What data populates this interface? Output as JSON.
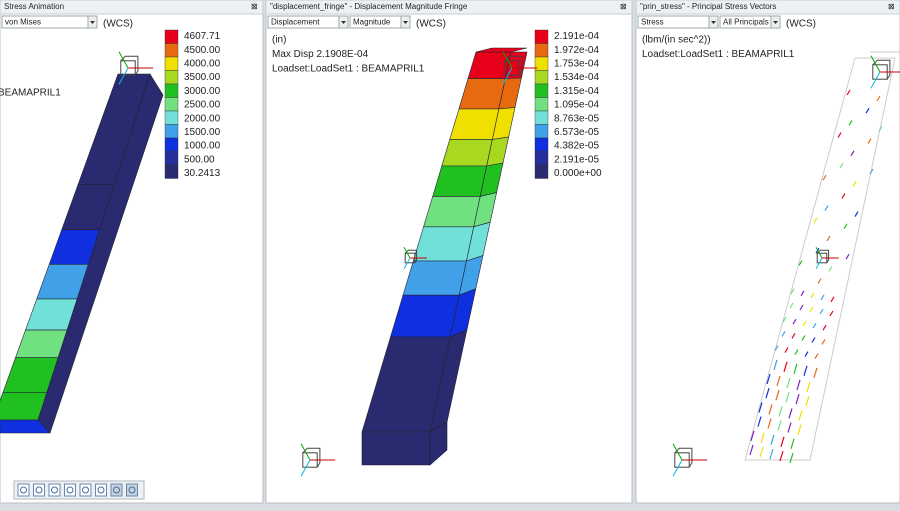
{
  "panels": [
    {
      "title": "Stress Animation",
      "dropdowns": [
        "von Mises"
      ],
      "coord": "(WCS)",
      "info": [
        "BEAMAPRIL1"
      ],
      "legend": [
        "4607.71",
        "4500.00",
        "4000.00",
        "3500.00",
        "3000.00",
        "2500.00",
        "2000.00",
        "1500.00",
        "1000.00",
        "500.00",
        "30.2413"
      ]
    },
    {
      "title": "\"displacement_fringe\" - Displacement Magnitude Fringe",
      "dropdowns": [
        "Displacement",
        "Magnitude"
      ],
      "coord": "(WCS)",
      "info": [
        "(in)",
        "Max Disp  2.1908E-04",
        "Loadset:LoadSet1 :  BEAMAPRIL1"
      ],
      "legend": [
        "2.191e-04",
        "1.972e-04",
        "1.753e-04",
        "1.534e-04",
        "1.315e-04",
        "1.095e-04",
        "8.763e-05",
        "6.573e-05",
        "4.382e-05",
        "2.191e-05",
        "0.000e+00"
      ]
    },
    {
      "title": "\"prin_stress\" - Principal Stress Vectors",
      "dropdowns": [
        "Stress",
        "All Principals"
      ],
      "coord": "(WCS)",
      "info": [
        "(lbm/(in sec^2))",
        "Loadset:LoadSet1 :  BEAMAPRIL1"
      ],
      "legend": []
    }
  ]
}
